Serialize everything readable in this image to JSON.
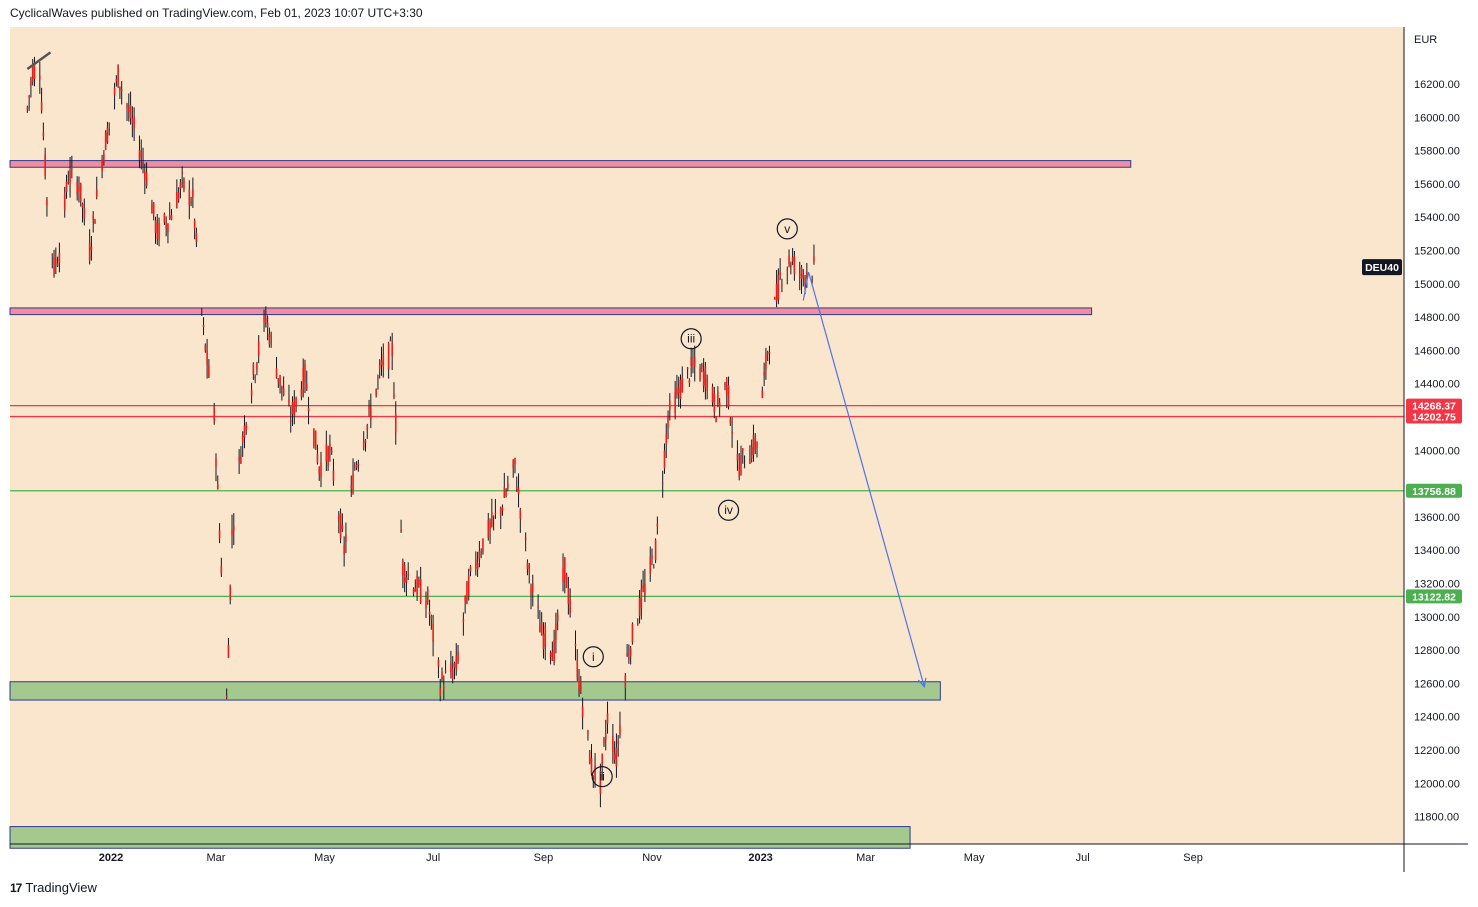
{
  "header": {
    "published": "CyclicalWaves published on TradingView.com, Feb 01, 2023 10:07 UTC+3:30"
  },
  "footer": {
    "brand": "TradingView",
    "logo": "17"
  },
  "chart_data": {
    "type": "candlestick",
    "symbol": "DEU40",
    "currency": "EUR",
    "y_ticks": [
      16200,
      16000,
      15800,
      15600,
      15400,
      15200,
      15000,
      14800,
      14600,
      14400,
      14000,
      13600,
      13400,
      13200,
      13000,
      12800,
      12600,
      12400,
      12200,
      12000,
      11800
    ],
    "x_ticks": [
      {
        "label": "2022",
        "date": "2022-01-01",
        "bold": true
      },
      {
        "label": "Mar",
        "date": "2022-03-01"
      },
      {
        "label": "May",
        "date": "2022-05-01"
      },
      {
        "label": "Jul",
        "date": "2022-07-01"
      },
      {
        "label": "Sep",
        "date": "2022-09-01"
      },
      {
        "label": "Nov",
        "date": "2022-11-01"
      },
      {
        "label": "2023",
        "date": "2023-01-01",
        "bold": true
      },
      {
        "label": "Mar",
        "date": "2023-03-01"
      },
      {
        "label": "May",
        "date": "2023-05-01"
      },
      {
        "label": "Jul",
        "date": "2023-07-01"
      },
      {
        "label": "Sep",
        "date": "2023-09-01"
      }
    ],
    "price_path": [
      [
        "2021-11-15",
        16050
      ],
      [
        "2021-11-18",
        16280
      ],
      [
        "2021-11-22",
        16300
      ],
      [
        "2021-11-26",
        15500
      ],
      [
        "2021-11-30",
        15100
      ],
      [
        "2021-12-03",
        15200
      ],
      [
        "2021-12-08",
        15650
      ],
      [
        "2021-12-14",
        15600
      ],
      [
        "2021-12-20",
        15200
      ],
      [
        "2021-12-27",
        15750
      ],
      [
        "2022-01-05",
        16250
      ],
      [
        "2022-01-12",
        16000
      ],
      [
        "2022-01-20",
        15700
      ],
      [
        "2022-01-27",
        15300
      ],
      [
        "2022-02-03",
        15400
      ],
      [
        "2022-02-10",
        15600
      ],
      [
        "2022-02-16",
        15500
      ],
      [
        "2022-02-22",
        14700
      ],
      [
        "2022-02-28",
        14200
      ],
      [
        "2022-03-04",
        13300
      ],
      [
        "2022-03-07",
        12500
      ],
      [
        "2022-03-10",
        13500
      ],
      [
        "2022-03-15",
        14000
      ],
      [
        "2022-03-21",
        14400
      ],
      [
        "2022-03-29",
        14800
      ],
      [
        "2022-04-05",
        14450
      ],
      [
        "2022-04-12",
        14200
      ],
      [
        "2022-04-20",
        14450
      ],
      [
        "2022-04-28",
        13900
      ],
      [
        "2022-05-04",
        14000
      ],
      [
        "2022-05-12",
        13400
      ],
      [
        "2022-05-18",
        13900
      ],
      [
        "2022-05-25",
        14150
      ],
      [
        "2022-06-02",
        14500
      ],
      [
        "2022-06-08",
        14600
      ],
      [
        "2022-06-14",
        13300
      ],
      [
        "2022-06-20",
        13200
      ],
      [
        "2022-06-28",
        13100
      ],
      [
        "2022-07-05",
        12600
      ],
      [
        "2022-07-14",
        12700
      ],
      [
        "2022-07-21",
        13200
      ],
      [
        "2022-07-29",
        13450
      ],
      [
        "2022-08-08",
        13650
      ],
      [
        "2022-08-16",
        13900
      ],
      [
        "2022-08-24",
        13250
      ],
      [
        "2022-08-31",
        12900
      ],
      [
        "2022-09-07",
        12800
      ],
      [
        "2022-09-13",
        13300
      ],
      [
        "2022-09-20",
        12700
      ],
      [
        "2022-09-28",
        12100
      ],
      [
        "2022-10-03",
        12000
      ],
      [
        "2022-10-07",
        12400
      ],
      [
        "2022-10-12",
        12150
      ],
      [
        "2022-10-18",
        12750
      ],
      [
        "2022-10-26",
        13100
      ],
      [
        "2022-11-03",
        13400
      ],
      [
        "2022-11-10",
        14200
      ],
      [
        "2022-11-18",
        14400
      ],
      [
        "2022-11-24",
        14500
      ],
      [
        "2022-12-01",
        14450
      ],
      [
        "2022-12-07",
        14250
      ],
      [
        "2022-12-13",
        14400
      ],
      [
        "2022-12-19",
        13900
      ],
      [
        "2022-12-23",
        13950
      ],
      [
        "2022-12-30",
        14050
      ],
      [
        "2023-01-05",
        14600
      ],
      [
        "2023-01-12",
        15050
      ],
      [
        "2023-01-18",
        15150
      ],
      [
        "2023-01-24",
        15050
      ],
      [
        "2023-01-31",
        15100
      ]
    ],
    "zones": [
      {
        "from": 15740,
        "to": 15700,
        "x_start": "2021-11-15",
        "x_end": "2023-07-28",
        "fill": "#f28c9e",
        "border": "#2b3a8f"
      },
      {
        "from": 14855,
        "to": 14815,
        "x_start": "2021-11-15",
        "x_end": "2023-07-06",
        "fill": "#f28c9e",
        "border": "#2b3a8f"
      },
      {
        "from": 12610,
        "to": 12500,
        "x_start": "2021-11-15",
        "x_end": "2023-04-12",
        "fill": "#a3c98f",
        "border": "#2b3a8f"
      },
      {
        "from": 11740,
        "to": 11610,
        "x_start": "2021-11-15",
        "x_end": "2023-03-26",
        "fill": "#a3c98f",
        "border": "#2b3a8f"
      }
    ],
    "hlines": [
      {
        "value": 14268.37,
        "label": "14268.37",
        "color": "#f23645"
      },
      {
        "value": 14202.75,
        "label": "14202.75",
        "color": "#f23645"
      },
      {
        "value": 13756.88,
        "label": "13756.88",
        "color": "#4caf50"
      },
      {
        "value": 13122.82,
        "label": "13122.82",
        "color": "#4caf50"
      }
    ],
    "waves": [
      {
        "label": "i",
        "date": "2022-09-29",
        "value": 12760
      },
      {
        "label": "ii",
        "date": "2022-10-04",
        "value": 12040
      },
      {
        "label": "iii",
        "date": "2022-11-23",
        "value": 14670
      },
      {
        "label": "iv",
        "date": "2022-12-14",
        "value": 13640
      },
      {
        "label": "v",
        "date": "2023-01-16",
        "value": 15330
      }
    ],
    "projection": [
      [
        "2023-01-25",
        14900
      ],
      [
        "2023-01-28",
        15070
      ],
      [
        "2023-04-03",
        12580
      ]
    ],
    "trendline": [
      [
        "2021-11-15",
        16290
      ],
      [
        "2021-11-28",
        16390
      ]
    ],
    "colors": {
      "background": "#fae5cd",
      "candle": "#e8201b",
      "wick": "#131722",
      "projection": "#4d73e8"
    }
  }
}
